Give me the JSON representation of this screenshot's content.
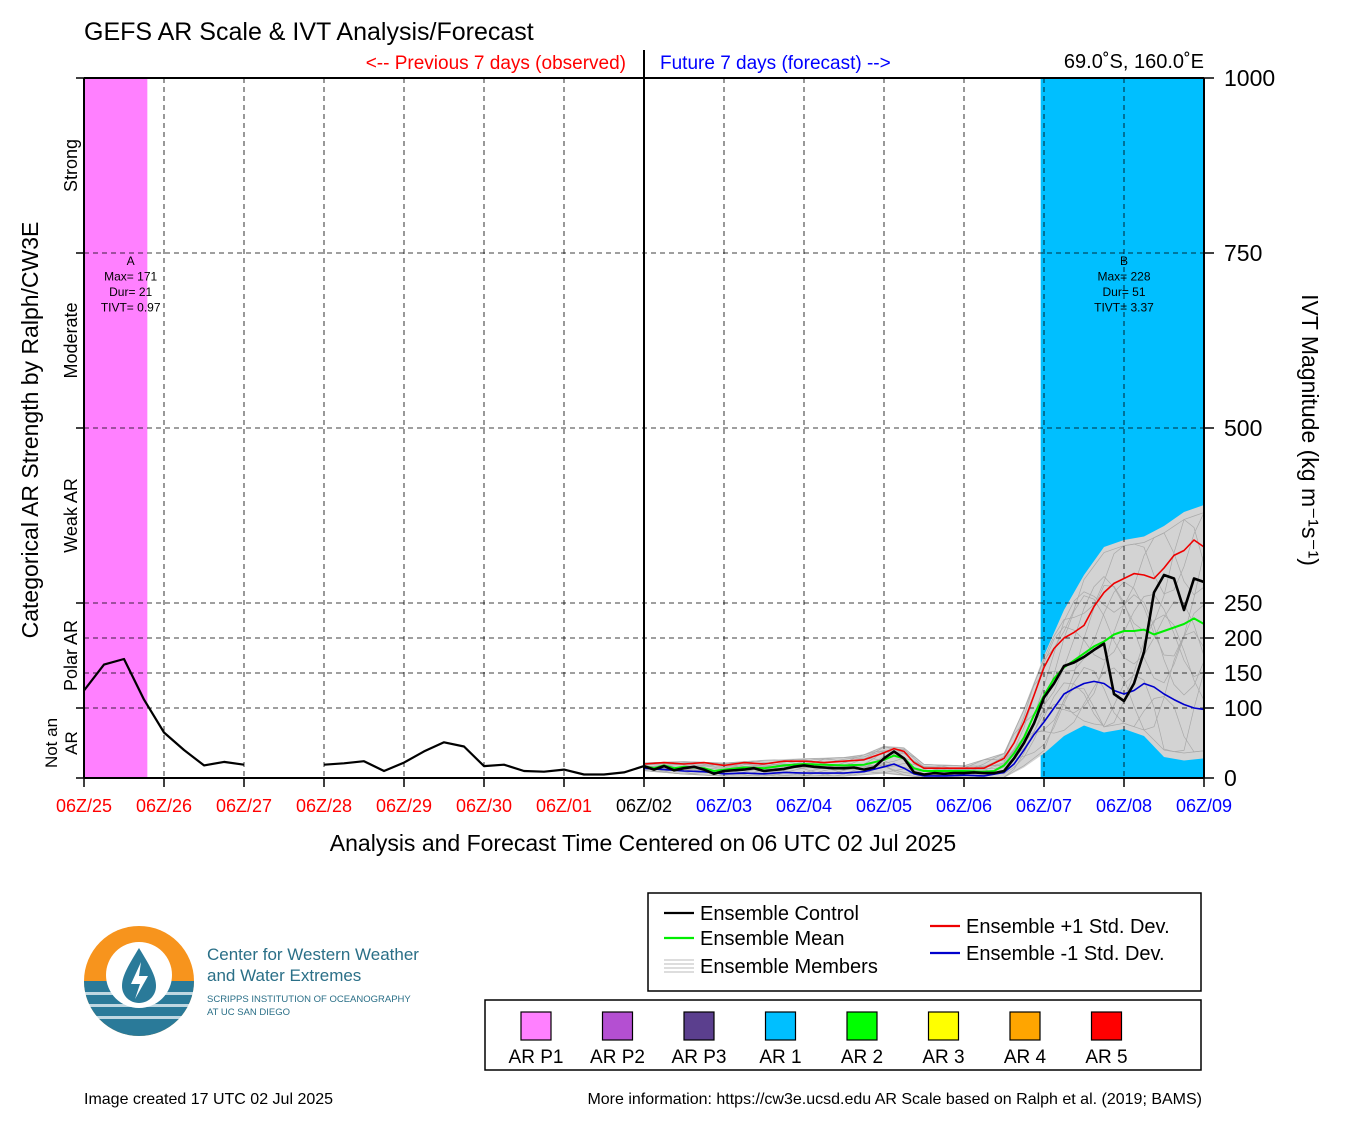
{
  "title": "GEFS AR Scale & IVT Analysis/Forecast",
  "location": "69.0˚S, 160.0˚E",
  "previous_label": "<-- Previous 7 days (observed)",
  "future_label": "Future 7 days (forecast) -->",
  "xlabel": "Analysis and Forecast Time Centered on 06 UTC 02 Jul 2025",
  "ylabel_left": "Categorical AR Strength by Ralph/CW3E",
  "ylabel_right": "IVT Magnitude (kg m⁻¹s⁻¹)",
  "categories_left": [
    {
      "label": "Strong",
      "center": 875
    },
    {
      "label": "Moderate",
      "center": 625
    },
    {
      "label": "Weak AR",
      "center": 375
    },
    {
      "label": "Polar AR",
      "center": 175
    },
    {
      "label": "Not an AR",
      "center": 50
    }
  ],
  "colors": {
    "observed": "#ff0000",
    "forecast": "#0000ff",
    "control": "#000000",
    "mean": "#00ee00",
    "plus_std": "#ee0000",
    "minus_std": "#0000cc",
    "members": "#bbbbbb",
    "spread": "#d3d3d3",
    "ar_p1": "#ff80ff",
    "ar_1": "#00bfff"
  },
  "chart_data": {
    "type": "line",
    "x_unit": "hours relative to 06Z/02 Jul 2025",
    "xlim": [
      -168,
      168
    ],
    "ylim": [
      0,
      1000
    ],
    "y_ticks": [
      0,
      100,
      150,
      200,
      250,
      500,
      750,
      1000
    ],
    "x_ticks": [
      {
        "x": -168,
        "label": "06Z/25",
        "kind": "observed"
      },
      {
        "x": -144,
        "label": "06Z/26",
        "kind": "observed"
      },
      {
        "x": -120,
        "label": "06Z/27",
        "kind": "observed"
      },
      {
        "x": -96,
        "label": "06Z/28",
        "kind": "observed"
      },
      {
        "x": -72,
        "label": "06Z/29",
        "kind": "observed"
      },
      {
        "x": -48,
        "label": "06Z/30",
        "kind": "observed"
      },
      {
        "x": -24,
        "label": "06Z/01",
        "kind": "observed"
      },
      {
        "x": 0,
        "label": "06Z/02",
        "kind": "now"
      },
      {
        "x": 24,
        "label": "06Z/03",
        "kind": "forecast"
      },
      {
        "x": 48,
        "label": "06Z/04",
        "kind": "forecast"
      },
      {
        "x": 72,
        "label": "06Z/05",
        "kind": "forecast"
      },
      {
        "x": 96,
        "label": "06Z/06",
        "kind": "forecast"
      },
      {
        "x": 120,
        "label": "06Z/07",
        "kind": "forecast"
      },
      {
        "x": 144,
        "label": "06Z/08",
        "kind": "forecast"
      },
      {
        "x": 168,
        "label": "06Z/09",
        "kind": "forecast"
      }
    ],
    "ar_events": [
      {
        "id": "A",
        "x_start": -168,
        "x_end": -149,
        "category": "AR P1",
        "label_x": -154,
        "lines": [
          "A",
          "Max= 171",
          "Dur= 21",
          "TIVT= 0.97"
        ]
      },
      {
        "id": "B",
        "x_start": 119,
        "x_end": 168,
        "category": "AR 1",
        "label_x": 144,
        "lines": [
          "B",
          "Max= 228",
          "Dur= 51",
          "TIVT= 3.37"
        ]
      }
    ],
    "series": [
      {
        "name": "Ensemble Control",
        "role": "control_obs_1",
        "points": [
          [
            -168,
            125
          ],
          [
            -162,
            162
          ],
          [
            -156,
            170
          ],
          [
            -150,
            112
          ],
          [
            -144,
            65
          ],
          [
            -138,
            40
          ],
          [
            -132,
            18
          ],
          [
            -126,
            23
          ],
          [
            -120,
            19
          ]
        ]
      },
      {
        "name": "Ensemble Control",
        "role": "control_obs_2",
        "points": [
          [
            -96,
            19
          ],
          [
            -90,
            21
          ],
          [
            -84,
            24
          ],
          [
            -78,
            10
          ],
          [
            -72,
            22
          ],
          [
            -66,
            38
          ],
          [
            -60,
            51
          ],
          [
            -54,
            45
          ],
          [
            -48,
            17
          ],
          [
            -42,
            19
          ],
          [
            -36,
            10
          ],
          [
            -30,
            9
          ],
          [
            -24,
            12
          ],
          [
            -18,
            5
          ],
          [
            -12,
            5
          ],
          [
            -6,
            8
          ],
          [
            0,
            17
          ]
        ]
      },
      {
        "name": "Ensemble Control",
        "role": "control_fc",
        "points": [
          [
            0,
            17
          ],
          [
            3,
            12
          ],
          [
            6,
            17
          ],
          [
            9,
            11
          ],
          [
            12,
            14
          ],
          [
            15,
            16
          ],
          [
            18,
            12
          ],
          [
            21,
            6
          ],
          [
            24,
            10
          ],
          [
            30,
            12
          ],
          [
            33,
            14
          ],
          [
            36,
            10
          ],
          [
            42,
            13
          ],
          [
            45,
            16
          ],
          [
            48,
            18
          ],
          [
            51,
            16
          ],
          [
            54,
            15
          ],
          [
            57,
            14
          ],
          [
            60,
            14
          ],
          [
            63,
            15
          ],
          [
            66,
            12
          ],
          [
            69,
            15
          ],
          [
            72,
            28
          ],
          [
            75,
            38
          ],
          [
            78,
            28
          ],
          [
            81,
            8
          ],
          [
            84,
            5
          ],
          [
            87,
            7
          ],
          [
            90,
            6
          ],
          [
            93,
            7
          ],
          [
            96,
            7
          ],
          [
            99,
            8
          ],
          [
            102,
            7
          ],
          [
            105,
            7
          ],
          [
            108,
            10
          ],
          [
            111,
            28
          ],
          [
            114,
            50
          ],
          [
            117,
            78
          ],
          [
            120,
            115
          ],
          [
            123,
            135
          ],
          [
            126,
            160
          ],
          [
            129,
            165
          ],
          [
            132,
            173
          ],
          [
            135,
            183
          ],
          [
            138,
            192
          ],
          [
            141,
            120
          ],
          [
            144,
            110
          ],
          [
            147,
            135
          ],
          [
            150,
            180
          ],
          [
            153,
            265
          ],
          [
            156,
            290
          ],
          [
            159,
            285
          ],
          [
            162,
            240
          ],
          [
            165,
            285
          ],
          [
            168,
            280
          ]
        ]
      },
      {
        "name": "Ensemble Mean",
        "role": "mean",
        "points": [
          [
            0,
            17
          ],
          [
            3,
            14
          ],
          [
            6,
            18
          ],
          [
            9,
            14
          ],
          [
            12,
            16
          ],
          [
            18,
            14
          ],
          [
            21,
            10
          ],
          [
            24,
            12
          ],
          [
            30,
            15
          ],
          [
            36,
            14
          ],
          [
            42,
            18
          ],
          [
            48,
            20
          ],
          [
            54,
            19
          ],
          [
            60,
            18
          ],
          [
            66,
            19
          ],
          [
            72,
            26
          ],
          [
            75,
            32
          ],
          [
            78,
            28
          ],
          [
            81,
            14
          ],
          [
            84,
            10
          ],
          [
            90,
            10
          ],
          [
            96,
            10
          ],
          [
            102,
            9
          ],
          [
            105,
            10
          ],
          [
            108,
            18
          ],
          [
            111,
            35
          ],
          [
            114,
            58
          ],
          [
            117,
            90
          ],
          [
            120,
            118
          ],
          [
            123,
            142
          ],
          [
            126,
            158
          ],
          [
            129,
            168
          ],
          [
            132,
            178
          ],
          [
            135,
            188
          ],
          [
            138,
            195
          ],
          [
            141,
            205
          ],
          [
            144,
            210
          ],
          [
            147,
            210
          ],
          [
            150,
            212
          ],
          [
            153,
            205
          ],
          [
            156,
            210
          ],
          [
            159,
            215
          ],
          [
            162,
            220
          ],
          [
            165,
            228
          ],
          [
            168,
            220
          ]
        ]
      },
      {
        "name": "Ensemble +1 Std. Dev.",
        "role": "plus_std",
        "points": [
          [
            0,
            20
          ],
          [
            6,
            22
          ],
          [
            12,
            20
          ],
          [
            18,
            22
          ],
          [
            24,
            18
          ],
          [
            30,
            22
          ],
          [
            36,
            20
          ],
          [
            42,
            24
          ],
          [
            48,
            24
          ],
          [
            54,
            22
          ],
          [
            60,
            24
          ],
          [
            66,
            26
          ],
          [
            72,
            36
          ],
          [
            75,
            42
          ],
          [
            78,
            38
          ],
          [
            81,
            22
          ],
          [
            84,
            14
          ],
          [
            90,
            14
          ],
          [
            96,
            14
          ],
          [
            102,
            14
          ],
          [
            108,
            28
          ],
          [
            111,
            50
          ],
          [
            114,
            80
          ],
          [
            117,
            118
          ],
          [
            120,
            158
          ],
          [
            123,
            185
          ],
          [
            126,
            200
          ],
          [
            129,
            208
          ],
          [
            132,
            218
          ],
          [
            135,
            245
          ],
          [
            138,
            265
          ],
          [
            141,
            278
          ],
          [
            144,
            285
          ],
          [
            147,
            292
          ],
          [
            150,
            290
          ],
          [
            153,
            285
          ],
          [
            156,
            300
          ],
          [
            159,
            318
          ],
          [
            162,
            325
          ],
          [
            165,
            340
          ],
          [
            168,
            330
          ]
        ]
      },
      {
        "name": "Ensemble -1 Std. Dev.",
        "role": "minus_std",
        "points": [
          [
            0,
            14
          ],
          [
            6,
            12
          ],
          [
            12,
            10
          ],
          [
            18,
            9
          ],
          [
            24,
            6
          ],
          [
            30,
            7
          ],
          [
            36,
            6
          ],
          [
            42,
            8
          ],
          [
            48,
            7
          ],
          [
            54,
            7
          ],
          [
            60,
            7
          ],
          [
            66,
            9
          ],
          [
            72,
            16
          ],
          [
            75,
            20
          ],
          [
            78,
            14
          ],
          [
            81,
            6
          ],
          [
            84,
            3
          ],
          [
            90,
            3
          ],
          [
            96,
            4
          ],
          [
            102,
            3
          ],
          [
            108,
            8
          ],
          [
            111,
            20
          ],
          [
            114,
            40
          ],
          [
            117,
            62
          ],
          [
            120,
            80
          ],
          [
            123,
            100
          ],
          [
            126,
            120
          ],
          [
            129,
            128
          ],
          [
            132,
            135
          ],
          [
            135,
            138
          ],
          [
            138,
            135
          ],
          [
            141,
            125
          ],
          [
            144,
            120
          ],
          [
            147,
            125
          ],
          [
            150,
            135
          ],
          [
            153,
            130
          ],
          [
            156,
            120
          ],
          [
            159,
            112
          ],
          [
            162,
            105
          ],
          [
            165,
            100
          ],
          [
            168,
            98
          ]
        ]
      }
    ],
    "members_band": {
      "upper": [
        [
          0,
          22
        ],
        [
          12,
          24
        ],
        [
          24,
          22
        ],
        [
          36,
          26
        ],
        [
          48,
          28
        ],
        [
          60,
          30
        ],
        [
          66,
          34
        ],
        [
          72,
          46
        ],
        [
          78,
          44
        ],
        [
          84,
          20
        ],
        [
          96,
          18
        ],
        [
          108,
          36
        ],
        [
          114,
          100
        ],
        [
          120,
          175
        ],
        [
          126,
          240
        ],
        [
          132,
          290
        ],
        [
          138,
          330
        ],
        [
          144,
          340
        ],
        [
          150,
          345
        ],
        [
          156,
          360
        ],
        [
          162,
          380
        ],
        [
          168,
          390
        ]
      ],
      "lower": [
        [
          0,
          10
        ],
        [
          12,
          5
        ],
        [
          24,
          2
        ],
        [
          36,
          2
        ],
        [
          48,
          2
        ],
        [
          60,
          2
        ],
        [
          72,
          6
        ],
        [
          84,
          0
        ],
        [
          96,
          0
        ],
        [
          108,
          0
        ],
        [
          114,
          15
        ],
        [
          120,
          35
        ],
        [
          126,
          60
        ],
        [
          132,
          75
        ],
        [
          138,
          65
        ],
        [
          144,
          70
        ],
        [
          150,
          60
        ],
        [
          156,
          30
        ],
        [
          162,
          25
        ],
        [
          168,
          28
        ]
      ]
    },
    "legend": [
      {
        "label": "Ensemble Control",
        "color": "#000000"
      },
      {
        "label": "Ensemble Mean",
        "color": "#00ee00"
      },
      {
        "label": "Ensemble Members",
        "color": "#bbbbbb"
      },
      {
        "label": "Ensemble +1 Std. Dev.",
        "color": "#ee0000"
      },
      {
        "label": "Ensemble -1 Std. Dev.",
        "color": "#0000cc"
      }
    ],
    "legend_position": "bottom-right"
  },
  "ar_scale_legend": [
    {
      "label": "AR P1",
      "color": "#ff80ff"
    },
    {
      "label": "AR P2",
      "color": "#b44fd2"
    },
    {
      "label": "AR P3",
      "color": "#5b3f8e"
    },
    {
      "label": "AR 1",
      "color": "#00bfff"
    },
    {
      "label": "AR 2",
      "color": "#00ff00"
    },
    {
      "label": "AR 3",
      "color": "#ffff00"
    },
    {
      "label": "AR 4",
      "color": "#ffa500"
    },
    {
      "label": "AR 5",
      "color": "#ff0000"
    }
  ],
  "logo": {
    "line1": "Center for Western Weather",
    "line2": "and Water Extremes",
    "line3": "SCRIPPS INSTITUTION OF OCEANOGRAPHY",
    "line4": "AT UC SAN DIEGO",
    "orange": "#f7941d",
    "teal": "#2a7a99"
  },
  "footer_left": "Image created 17 UTC 02 Jul 2025",
  "footer_right": "More information: https://cw3e.ucsd.edu AR Scale based on Ralph et al. (2019; BAMS)"
}
